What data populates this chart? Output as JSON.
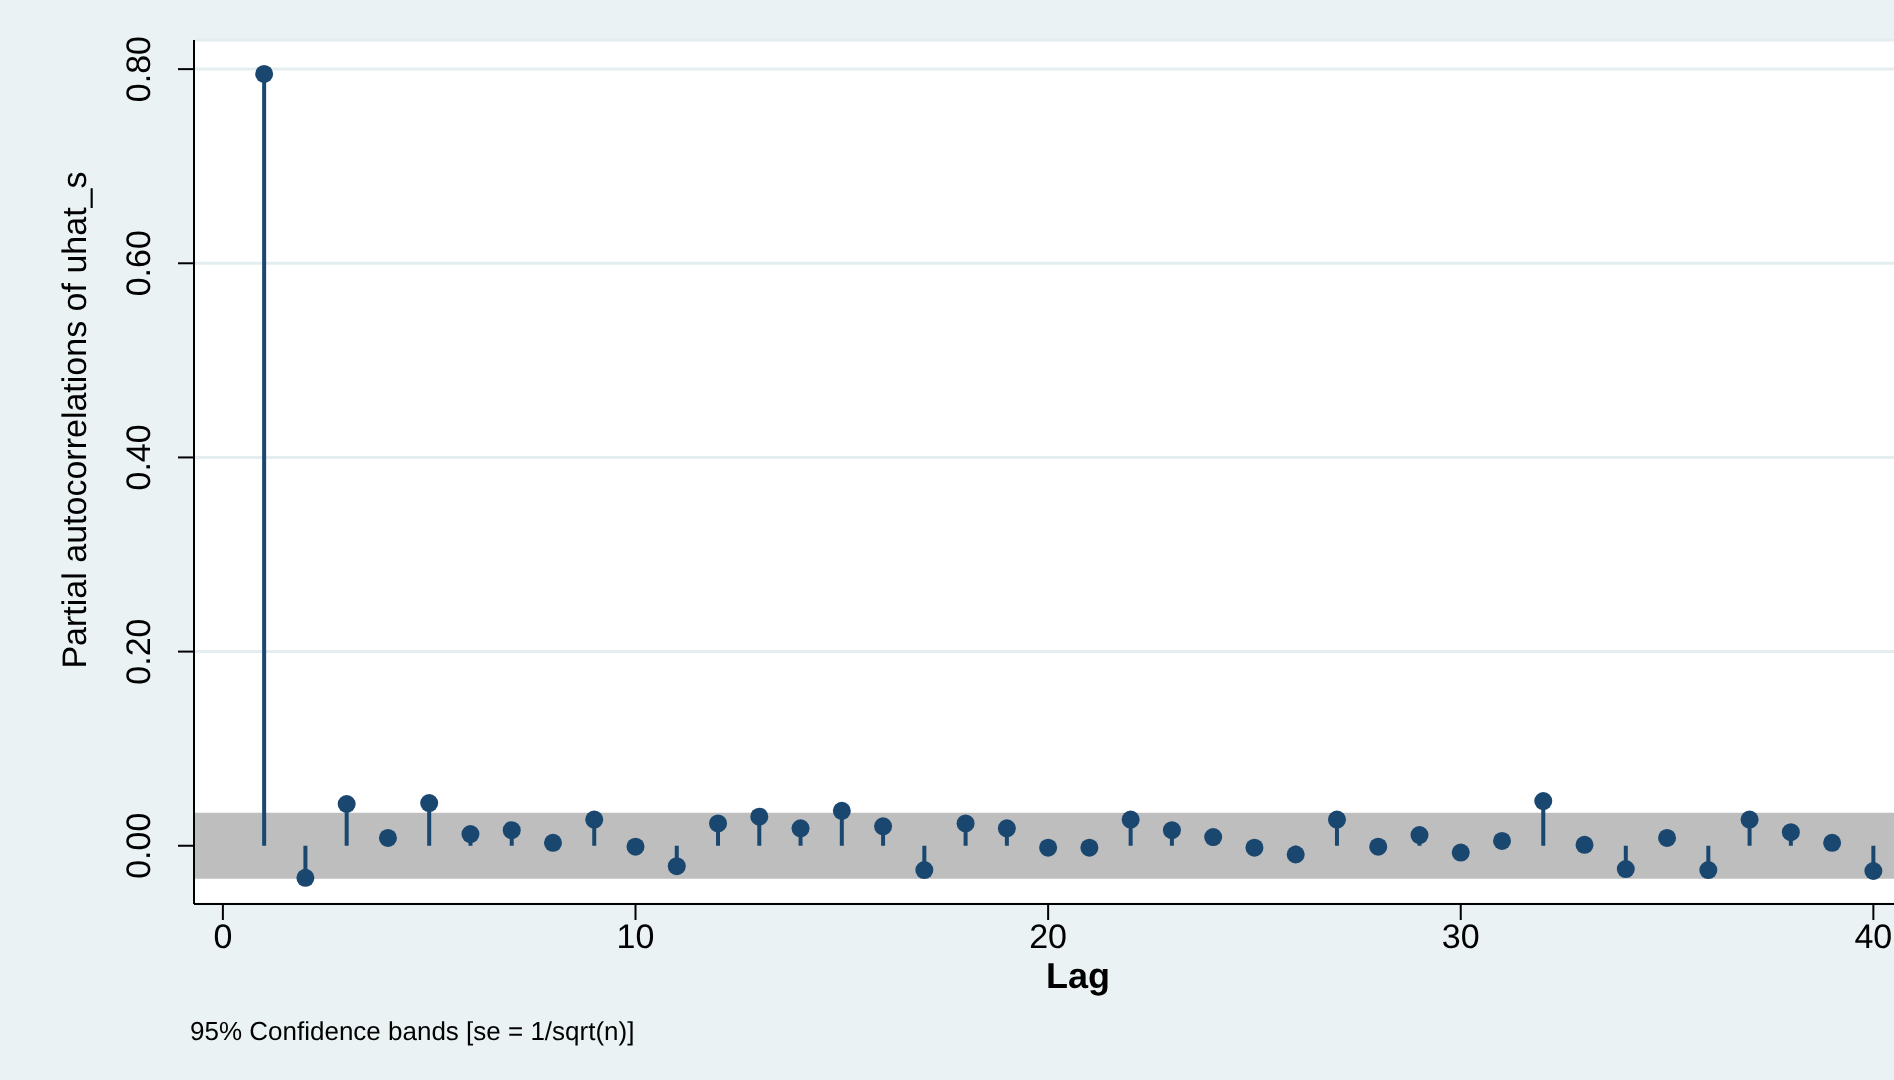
{
  "chart_data": {
    "type": "lollipop",
    "xlabel": "Lag",
    "ylabel": "Partial autocorrelations of uhat_s",
    "annotations": [
      "95% Confidence bands [se = 1/sqrt(n)]"
    ],
    "x": [
      1,
      2,
      3,
      4,
      5,
      6,
      7,
      8,
      9,
      10,
      11,
      12,
      13,
      14,
      15,
      16,
      17,
      18,
      19,
      20,
      21,
      22,
      23,
      24,
      25,
      26,
      27,
      28,
      29,
      30,
      31,
      32,
      33,
      34,
      35,
      36,
      37,
      38,
      39,
      40
    ],
    "series": [
      {
        "color": "#1a476f",
        "values": [
          0.795,
          -0.033,
          0.043,
          0.008,
          0.044,
          0.012,
          0.016,
          0.003,
          0.027,
          -0.001,
          -0.021,
          0.023,
          0.03,
          0.018,
          0.036,
          0.02,
          -0.025,
          0.023,
          0.018,
          -0.002,
          -0.002,
          0.027,
          0.016,
          0.009,
          -0.002,
          -0.009,
          0.027,
          -0.001,
          0.011,
          -0.007,
          0.005,
          0.046,
          0.001,
          -0.024,
          0.008,
          -0.025,
          0.027,
          0.014,
          0.003,
          -0.026
        ]
      }
    ],
    "bands": [
      {
        "axis": "y",
        "from": -0.034,
        "to": 0.034,
        "color": "#bebebe"
      }
    ],
    "xlim": [
      -0.7,
      40.5
    ],
    "xticks": [
      0,
      10,
      20,
      30,
      40
    ],
    "ylim": [
      -0.06,
      0.83
    ],
    "yticks": [
      {
        "value": 0,
        "label": "0.00"
      },
      {
        "value": 0.2,
        "label": "0.20"
      },
      {
        "value": 0.4,
        "label": "0.40"
      },
      {
        "value": 0.6,
        "label": "0.60"
      },
      {
        "value": 0.8,
        "label": "0.80"
      }
    ],
    "grid": "y",
    "marker": "circle"
  }
}
